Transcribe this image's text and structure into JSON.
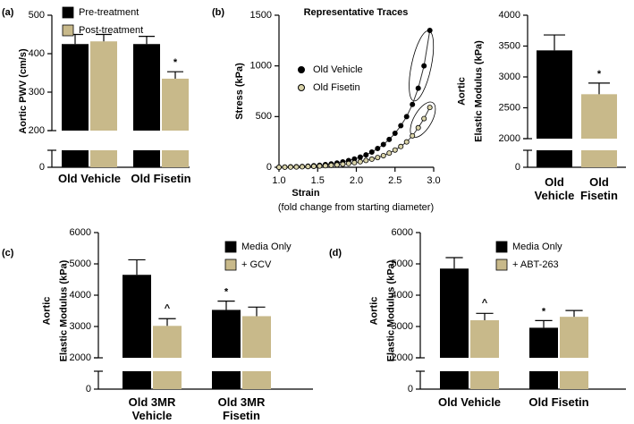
{
  "chart_data": [
    {
      "type": "bar",
      "panel_label": "(a)",
      "ylabel": "Aortic PWV (cm/s)",
      "categories": [
        "Old Vehicle",
        "Old Fisetin"
      ],
      "series": [
        {
          "name": "Pre-treatment",
          "color": "#000000",
          "values": [
            425,
            425
          ],
          "errors": [
            25,
            20
          ]
        },
        {
          "name": "Post-treatment",
          "color": "#c8b98a",
          "values": [
            432,
            335
          ],
          "errors": [
            18,
            18
          ]
        }
      ],
      "ylim": [
        200,
        500
      ],
      "yticks": [
        200,
        300,
        400,
        500
      ],
      "break_yticks": [
        0
      ],
      "annotations": [
        {
          "text": "*",
          "category": "Old Fisetin",
          "series": "Post-treatment"
        }
      ],
      "legend": "upper left"
    },
    {
      "type": "line",
      "panel_label": "(b)",
      "title": "Representative Traces",
      "ylabel": "Stress (kPa)",
      "xlabel": "Strain",
      "xlabel_note": "(fold change from starting diameter)",
      "x": [
        1.0,
        1.075,
        1.15,
        1.225,
        1.3,
        1.375,
        1.45,
        1.525,
        1.6,
        1.675,
        1.75,
        1.825,
        1.9,
        1.975,
        2.05,
        2.125,
        2.2,
        2.275,
        2.35,
        2.425,
        2.5,
        2.575,
        2.65,
        2.725,
        2.8,
        2.875,
        2.95
      ],
      "series": [
        {
          "name": "Old Vehicle",
          "color": "#000000",
          "values": [
            0,
            2,
            4,
            6,
            8,
            11,
            15,
            20,
            26,
            33,
            42,
            53,
            66,
            82,
            100,
            122,
            150,
            185,
            225,
            275,
            335,
            410,
            500,
            620,
            780,
            1000,
            1350
          ]
        },
        {
          "name": "Old Fisetin",
          "color": "#d8d2a8",
          "values": [
            0,
            1,
            2,
            3,
            5,
            7,
            9,
            12,
            15,
            19,
            24,
            30,
            37,
            45,
            55,
            67,
            80,
            96,
            115,
            140,
            170,
            205,
            250,
            310,
            390,
            480,
            590
          ]
        }
      ],
      "xlim": [
        1,
        3
      ],
      "xticks": [
        {
          "value": 1,
          "label": "1.0"
        },
        1.5,
        {
          "value": 2,
          "label": "2.0"
        },
        2.5,
        {
          "value": 3,
          "label": "3.0"
        }
      ],
      "ylim": [
        0,
        1500
      ],
      "yticks": [
        0,
        500,
        1000,
        1500
      ],
      "legend": "center left"
    },
    {
      "type": "bar",
      "ylabel": [
        "Aortic",
        "Elastic Modulus (kPa)"
      ],
      "categories": [
        "Old Vehicle",
        "Old Fisetin"
      ],
      "series": [
        {
          "values": [
            3430,
            2720
          ],
          "errors": [
            250,
            180
          ],
          "colors": [
            "#000000",
            "#c8b98a"
          ]
        }
      ],
      "ylim": [
        2000,
        4000
      ],
      "yticks": [
        2000,
        2500,
        3000,
        3500,
        4000
      ],
      "break_yticks": [
        0
      ],
      "annotations": [
        {
          "text": "*",
          "category": "Old Fisetin"
        }
      ]
    },
    {
      "type": "bar",
      "panel_label": "(c)",
      "ylabel": [
        "Aortic",
        "Elastic Modulus (kPa)"
      ],
      "categories": [
        "Old 3MR Vehicle",
        "Old 3MR Fisetin"
      ],
      "series": [
        {
          "name": "Media Only",
          "color": "#000000",
          "values": [
            4650,
            3530
          ],
          "errors": [
            480,
            280
          ]
        },
        {
          "name": "+ GCV",
          "color": "#c8b98a",
          "values": [
            3020,
            3330
          ],
          "errors": [
            230,
            290
          ]
        }
      ],
      "ylim": [
        2000,
        6000
      ],
      "yticks": [
        2000,
        3000,
        4000,
        5000,
        6000
      ],
      "break_yticks": [
        0
      ],
      "annotations": [
        {
          "text": "^",
          "category": "Old 3MR Vehicle",
          "series": "+ GCV"
        },
        {
          "text": "*",
          "category": "Old 3MR Fisetin",
          "series": "Media Only"
        }
      ],
      "legend": "upper right"
    },
    {
      "type": "bar",
      "panel_label": "(d)",
      "ylabel": [
        "Aortic",
        "Elastic Modulus (kPa)"
      ],
      "categories": [
        "Old Vehicle",
        "Old Fisetin"
      ],
      "series": [
        {
          "name": "Media Only",
          "color": "#000000",
          "values": [
            4850,
            2960
          ],
          "errors": [
            350,
            230
          ]
        },
        {
          "name": "+ ABT-263",
          "color": "#c8b98a",
          "values": [
            3200,
            3310
          ],
          "errors": [
            220,
            200
          ]
        }
      ],
      "ylim": [
        2000,
        6000
      ],
      "yticks": [
        2000,
        3000,
        4000,
        5000,
        6000
      ],
      "break_yticks": [
        0
      ],
      "annotations": [
        {
          "text": "^",
          "category": "Old Vehicle",
          "series": "+ ABT-263"
        },
        {
          "text": "*",
          "category": "Old Fisetin",
          "series": "Media Only"
        }
      ],
      "legend": "upper right"
    }
  ]
}
